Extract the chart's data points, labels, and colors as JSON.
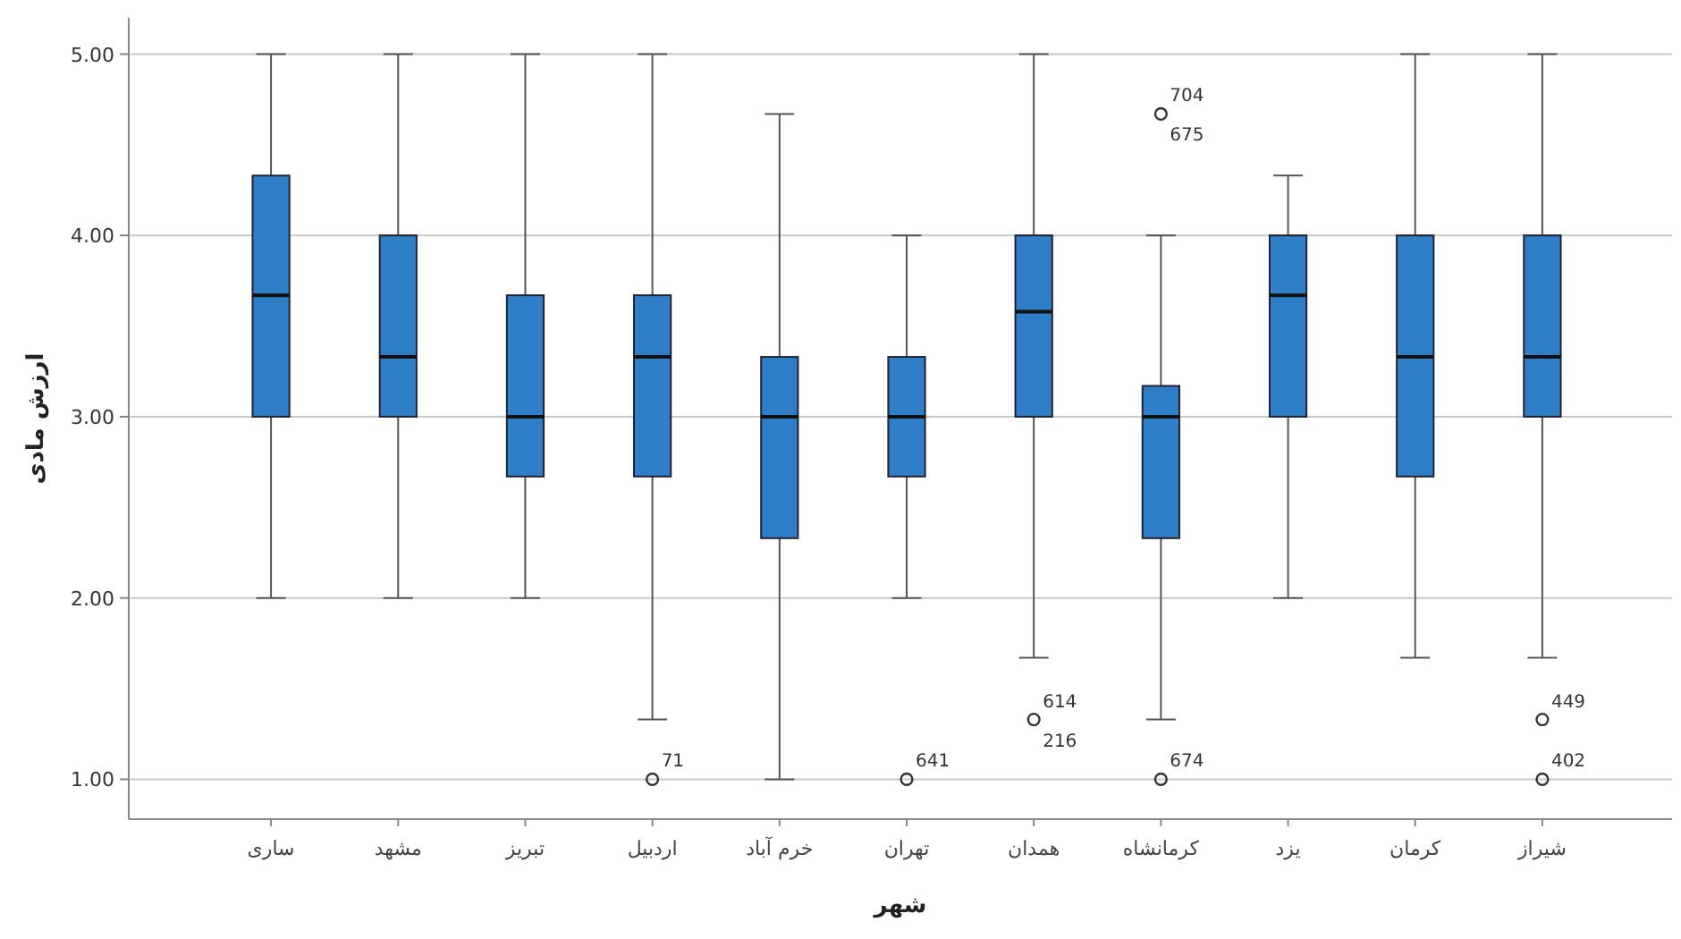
{
  "chart_data": {
    "type": "box",
    "xlabel": "شهر",
    "ylabel": "ارزش مادی",
    "categories": [
      "ساری",
      "مشهد",
      "تبریز",
      "اردبیل",
      "خرم آباد",
      "تهران",
      "همدان",
      "کرمانشاه",
      "یزد",
      "کرمان",
      "شیراز"
    ],
    "boxes": [
      {
        "low": 2,
        "q1": 3,
        "median": 3.67,
        "q3": 4.33,
        "high": 5
      },
      {
        "low": 2,
        "q1": 3,
        "median": 3.33,
        "q3": 4,
        "high": 5
      },
      {
        "low": 2,
        "q1": 2.67,
        "median": 3,
        "q3": 3.67,
        "high": 5
      },
      {
        "low": 1.33,
        "q1": 2.67,
        "median": 3.33,
        "q3": 3.67,
        "high": 5
      },
      {
        "low": 1,
        "q1": 2.33,
        "median": 3,
        "q3": 3.33,
        "high": 4.67
      },
      {
        "low": 2,
        "q1": 2.67,
        "median": 3,
        "q3": 3.33,
        "high": 4
      },
      {
        "low": 1.67,
        "q1": 3,
        "median": 3.58,
        "q3": 4,
        "high": 5
      },
      {
        "low": 1.33,
        "q1": 2.33,
        "median": 3,
        "q3": 3.17,
        "high": 4
      },
      {
        "low": 2,
        "q1": 3,
        "median": 3.67,
        "q3": 4,
        "high": 4.33
      },
      {
        "low": 1.67,
        "q1": 2.67,
        "median": 3.33,
        "q3": 4,
        "high": 5
      },
      {
        "low": 1.67,
        "q1": 3,
        "median": 3.33,
        "q3": 4,
        "high": 5
      }
    ],
    "series": [
      {
        "type": "scatter",
        "marker": "circle",
        "color": "#333333",
        "x": [
          "اردبیل",
          "تهران",
          "همدان",
          "کرمانشاه",
          "کرمانشاه",
          "شیراز",
          "شیراز"
        ],
        "values": [
          1,
          1,
          1.33,
          4.67,
          1,
          1.33,
          1
        ]
      }
    ],
    "color": "#2f7fc8",
    "ylim": [
      0.78,
      5.2
    ],
    "yticks": [
      {
        "value": 1,
        "label": "1.00"
      },
      {
        "value": 2,
        "label": "2.00"
      },
      {
        "value": 3,
        "label": "3.00"
      },
      {
        "value": 4,
        "label": "4.00"
      },
      {
        "value": 5,
        "label": "5.00"
      }
    ],
    "grid": "y",
    "annotations": [
      {
        "text": "71",
        "x": "اردبیل",
        "y": 1
      },
      {
        "text": "641",
        "x": "تهران",
        "y": 1
      },
      {
        "text": "614",
        "x": "همدان",
        "y": 1.33
      },
      {
        "text": "216",
        "x": "همدان",
        "y": 1.33
      },
      {
        "text": "704",
        "x": "کرمانشاه",
        "y": 4.67
      },
      {
        "text": "675",
        "x": "کرمانشاه",
        "y": 4.67
      },
      {
        "text": "674",
        "x": "کرمانشاه",
        "y": 1
      },
      {
        "text": "449",
        "x": "شیراز",
        "y": 1.33
      },
      {
        "text": "402",
        "x": "شیراز",
        "y": 1
      }
    ]
  }
}
